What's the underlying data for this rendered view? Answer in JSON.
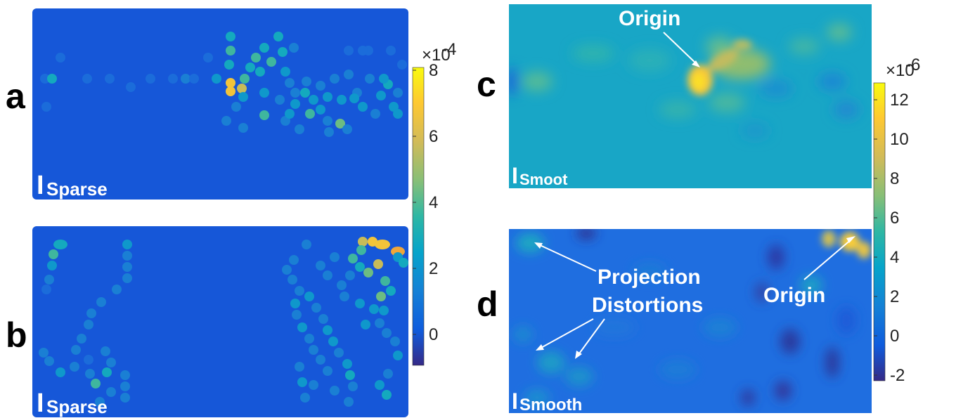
{
  "panels": [
    {
      "letter": "a",
      "label_main": "I",
      "label_sub": "Sparse"
    },
    {
      "letter": "b",
      "label_main": "I",
      "label_sub": "Sparse"
    },
    {
      "letter": "c",
      "label_main": "I",
      "label_sub": "Smoot"
    },
    {
      "letter": "d",
      "label_main": "I",
      "label_sub": "Smooth"
    }
  ],
  "colorbar_left": {
    "multiplier": "×10",
    "exponent": "-4",
    "ticks": [
      "8",
      "6",
      "4",
      "2",
      "0"
    ]
  },
  "colorbar_right": {
    "multiplier": "×10",
    "exponent": "-6",
    "ticks": [
      "12",
      "10",
      "8",
      "6",
      "4",
      "2",
      "0",
      "-2"
    ]
  },
  "annotations": {
    "origin_c": "Origin",
    "origin_d": "Origin",
    "projection_line1": "Projection",
    "projection_line2": "Distortions"
  },
  "colors": {
    "panel_bg_sparse": "#1657d8",
    "panel_bg_smooth_c": "#18a6c6",
    "panel_bg_smooth_d": "#1f6ee0",
    "colormap": [
      "#352a87",
      "#0f5cdd",
      "#1481d6",
      "#06a4ca",
      "#2eb7a4",
      "#87bf77",
      "#d1bb59",
      "#fec832",
      "#f9fb0e"
    ]
  }
}
